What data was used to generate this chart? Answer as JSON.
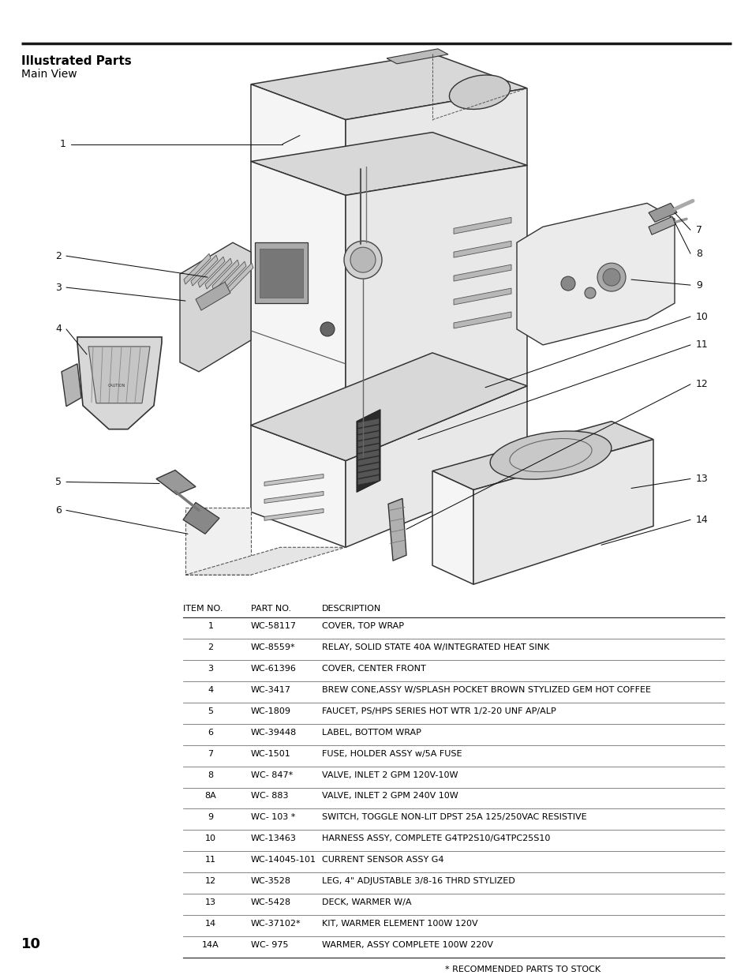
{
  "title_bold": "Illustrated Parts",
  "title_regular": "Main View",
  "page_number": "10",
  "table_headers": [
    "ITEM NO.",
    "PART NO.",
    "DESCRIPTION"
  ],
  "table_rows": [
    [
      "1",
      "WC-58117",
      "COVER, TOP WRAP"
    ],
    [
      "2",
      "WC-8559*",
      "RELAY, SOLID STATE 40A W/INTEGRATED HEAT SINK"
    ],
    [
      "3",
      "WC-61396",
      "COVER, CENTER FRONT"
    ],
    [
      "4",
      "WC-3417",
      "BREW CONE,ASSY W/SPLASH POCKET BROWN STYLIZED GEM HOT COFFEE"
    ],
    [
      "5",
      "WC-1809",
      "FAUCET, PS/HPS SERIES HOT WTR 1/2-20 UNF AP/ALP"
    ],
    [
      "6",
      "WC-39448",
      "LABEL, BOTTOM WRAP"
    ],
    [
      "7",
      "WC-1501",
      "FUSE, HOLDER ASSY w/5A FUSE"
    ],
    [
      "8",
      "WC- 847*",
      "VALVE, INLET 2 GPM 120V-10W"
    ],
    [
      "8A",
      "WC- 883",
      "VALVE, INLET 2 GPM 240V 10W"
    ],
    [
      "9",
      "WC- 103 *",
      "SWITCH, TOGGLE NON-LIT DPST 25A 125/250VAC RESISTIVE"
    ],
    [
      "10",
      "WC-13463",
      "HARNESS ASSY, COMPLETE G4TP2S10/G4TPC25S10"
    ],
    [
      "11",
      "WC-14045-101",
      "CURRENT SENSOR ASSY G4"
    ],
    [
      "12",
      "WC-3528",
      "LEG, 4\" ADJUSTABLE 3/8-16 THRD STYLIZED"
    ],
    [
      "13",
      "WC-5428",
      "DECK, WARMER W/A"
    ],
    [
      "14",
      "WC-37102*",
      "KIT, WARMER ELEMENT 100W 120V"
    ],
    [
      "14A",
      "WC- 975",
      "WARMER, ASSY COMPLETE 100W 220V"
    ]
  ],
  "footnote": "* RECOMMENDED PARTS TO STOCK",
  "bg_color": "#ffffff",
  "text_color": "#000000",
  "line_color": "#000000"
}
